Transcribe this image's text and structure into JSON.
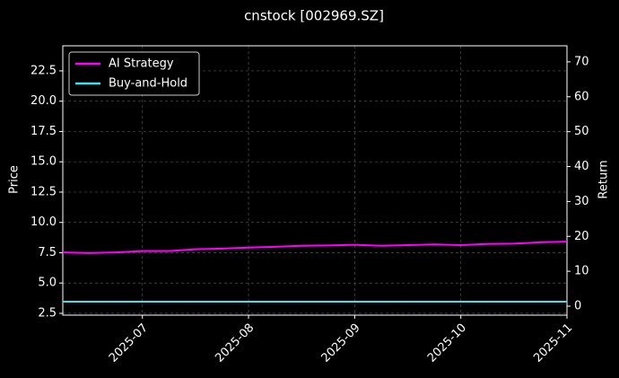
{
  "chart_data": {
    "type": "line",
    "title": "cnstock [002969.SZ]",
    "ylabel": "Price",
    "y2label": "Return",
    "x": [
      null,
      null,
      null,
      "2025-07",
      null,
      null,
      null,
      "2025-08",
      null,
      null,
      null,
      "2025-09",
      null,
      null,
      null,
      "2025-10",
      null,
      null,
      null,
      "2025-11"
    ],
    "series": [
      {
        "name": "AI Strategy",
        "color": "#ff00ff",
        "axis": "y2",
        "values": [
          15.4,
          15.2,
          15.4,
          15.8,
          15.8,
          16.3,
          16.5,
          16.8,
          17.0,
          17.3,
          17.4,
          17.6,
          17.3,
          17.5,
          17.7,
          17.5,
          17.8,
          17.9,
          18.3,
          18.5
        ]
      },
      {
        "name": "Buy-and-Hold",
        "color": "#40e0f0",
        "axis": "y2",
        "values": [
          1.3,
          1.3,
          1.3,
          1.3,
          1.3,
          1.3,
          1.3,
          1.3,
          1.3,
          1.3,
          1.3,
          1.3,
          1.3,
          1.3,
          1.3,
          1.3,
          1.3,
          1.3,
          1.3,
          1.3
        ]
      }
    ],
    "ylim": [
      2.35,
      24.57
    ],
    "yticks": [
      2.5,
      {
        "value": 5,
        "label": "5.0"
      },
      7.5,
      {
        "value": 10,
        "label": "10.0"
      },
      12.5,
      {
        "value": 15,
        "label": "15.0"
      },
      17.5,
      {
        "value": 20,
        "label": "20.0"
      },
      22.5
    ],
    "y2lim": [
      -2.57,
      74.6
    ],
    "y2ticks": [
      0,
      10,
      20,
      30,
      40,
      50,
      60,
      70
    ],
    "grid": true,
    "legend": "upper left"
  }
}
